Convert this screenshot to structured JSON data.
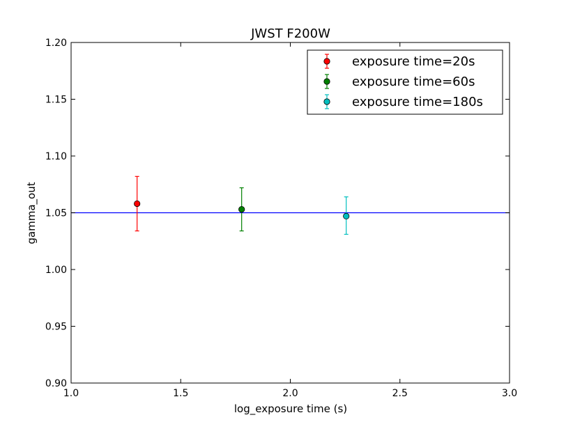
{
  "chart_data": {
    "type": "scatter",
    "title": "JWST F200W",
    "xlabel": "log_exposure time (s)",
    "ylabel": "gamma_out",
    "xlim": [
      1.0,
      3.0
    ],
    "ylim": [
      0.9,
      1.2
    ],
    "xticks": [
      1.0,
      1.5,
      2.0,
      2.5,
      3.0
    ],
    "xtick_labels": [
      "1.0",
      "1.5",
      "2.0",
      "2.5",
      "3.0"
    ],
    "yticks": [
      0.9,
      0.95,
      1.0,
      1.05,
      1.1,
      1.15,
      1.2
    ],
    "ytick_labels": [
      "0.90",
      "0.95",
      "1.00",
      "1.05",
      "1.10",
      "1.15",
      "1.20"
    ],
    "grid": false,
    "legend_position": "top-right",
    "reference_line": {
      "y": 1.05,
      "color": "#0000ff"
    },
    "series": [
      {
        "name": "exposure time=20s",
        "color": "#ff0000",
        "x": 1.301,
        "y": 1.058,
        "yerr_low": 1.034,
        "yerr_high": 1.082
      },
      {
        "name": "exposure time=60s",
        "color": "#008000",
        "x": 1.778,
        "y": 1.053,
        "yerr_low": 1.034,
        "yerr_high": 1.072
      },
      {
        "name": "exposure time=180s",
        "color": "#00bfbf",
        "x": 2.255,
        "y": 1.047,
        "yerr_low": 1.031,
        "yerr_high": 1.064
      }
    ]
  }
}
